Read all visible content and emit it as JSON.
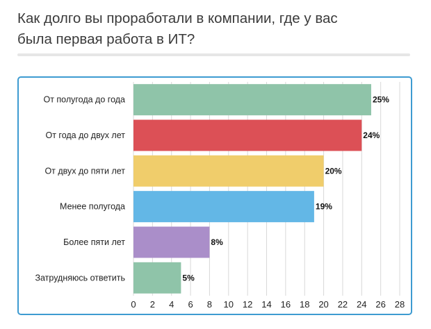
{
  "question": {
    "text_line1": "Как долго вы проработали в компании, где у вас",
    "text_line2": "была первая работа в ИТ?"
  },
  "colors": {
    "frame_border": "#3d9bd1",
    "divider": "#e6e6e6"
  },
  "chart_data": {
    "type": "bar",
    "orientation": "horizontal",
    "categories": [
      "От полугода до года",
      "От года до двух лет",
      "От двух до пяти лет",
      "Менее полугода",
      "Более пяти лет",
      "Затрудняюсь ответить"
    ],
    "values": [
      25,
      24,
      20,
      19,
      8,
      5
    ],
    "value_labels": [
      "25%",
      "24%",
      "20%",
      "19%",
      "8%",
      "5%"
    ],
    "colors": [
      "#8fc4a9",
      "#dc5056",
      "#f0cd6b",
      "#63b7e6",
      "#aa8ec9",
      "#8fc4a9"
    ],
    "xlim": [
      0,
      28
    ],
    "xticks": [
      0,
      2,
      4,
      6,
      8,
      10,
      12,
      14,
      16,
      18,
      20,
      22,
      24,
      26,
      28
    ],
    "grid": true,
    "xlabel": "",
    "ylabel": ""
  }
}
